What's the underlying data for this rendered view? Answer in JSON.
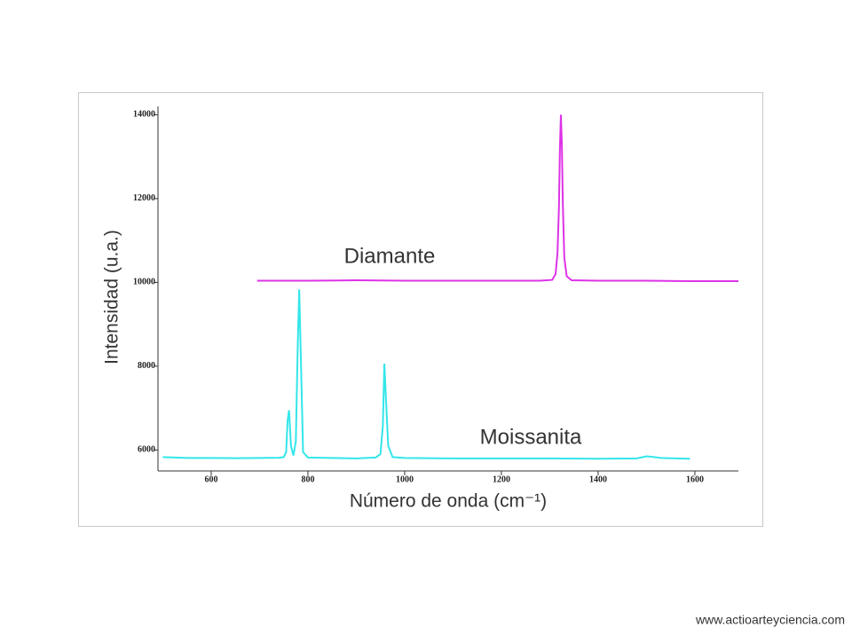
{
  "chart_data": {
    "type": "line",
    "xlabel": "Número de onda (cm⁻¹)",
    "ylabel": "Intensidad (u.a.)",
    "xlim": [
      490,
      1690
    ],
    "xticks": [
      600,
      800,
      1000,
      1200,
      1400,
      1600
    ],
    "ylim": [
      5500,
      14200
    ],
    "yticks": [
      6000,
      8000,
      10000,
      12000,
      14000
    ],
    "series": [
      {
        "name": "Moissanita",
        "color": "#33e6ea",
        "x": [
          500,
          550,
          600,
          650,
          700,
          740,
          750,
          755,
          758,
          761,
          765,
          770,
          775,
          779,
          782,
          785,
          790,
          800,
          850,
          900,
          940,
          950,
          955,
          958,
          961,
          966,
          975,
          1000,
          1100,
          1200,
          1300,
          1400,
          1480,
          1500,
          1510,
          1530,
          1590
        ],
        "values": [
          5830,
          5810,
          5810,
          5805,
          5810,
          5815,
          5830,
          5950,
          6700,
          6950,
          6100,
          5870,
          6200,
          8500,
          9830,
          8400,
          5950,
          5820,
          5810,
          5800,
          5820,
          5900,
          6600,
          8060,
          7300,
          6100,
          5830,
          5810,
          5800,
          5800,
          5800,
          5790,
          5800,
          5850,
          5840,
          5810,
          5790
        ]
      },
      {
        "name": "Diamante",
        "color": "#dd33e6",
        "x": [
          695,
          800,
          900,
          1000,
          1100,
          1200,
          1280,
          1305,
          1312,
          1316,
          1319,
          1321,
          1323,
          1325,
          1327,
          1330,
          1335,
          1345,
          1400,
          1500,
          1600,
          1690
        ],
        "values": [
          10040,
          10040,
          10050,
          10040,
          10040,
          10040,
          10040,
          10060,
          10200,
          10700,
          11800,
          13200,
          14000,
          13300,
          11900,
          10600,
          10150,
          10050,
          10040,
          10040,
          10030,
          10030
        ]
      }
    ]
  },
  "source": "www.actioarteyciencia.com"
}
